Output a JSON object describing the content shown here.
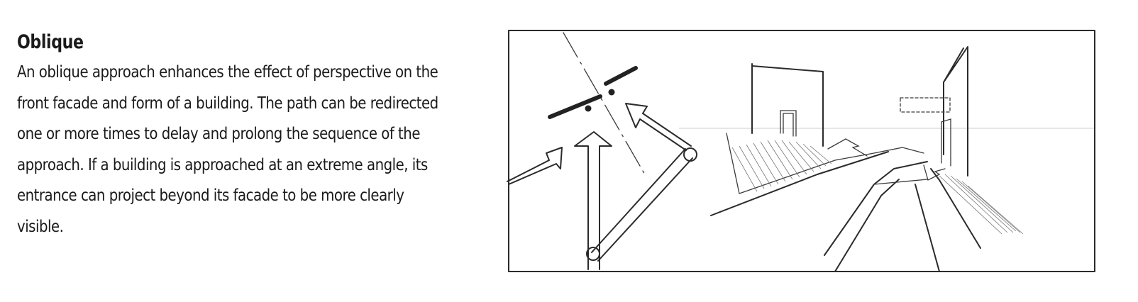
{
  "section": {
    "title": "Oblique",
    "body_lines": [
      "An oblique approach enhances the effect of perspective on the",
      "front facade and form of a building. The path can be redirected",
      "one or more times to delay and prolong the sequence of the",
      "approach. If a building is approached at an extreme angle, its",
      "entrance can project beyond its facade to be more clearly",
      "visible."
    ]
  },
  "illustration": {
    "panels": [
      "plan-diagram-oblique-path",
      "perspective-sketch-oblique-approach"
    ]
  }
}
